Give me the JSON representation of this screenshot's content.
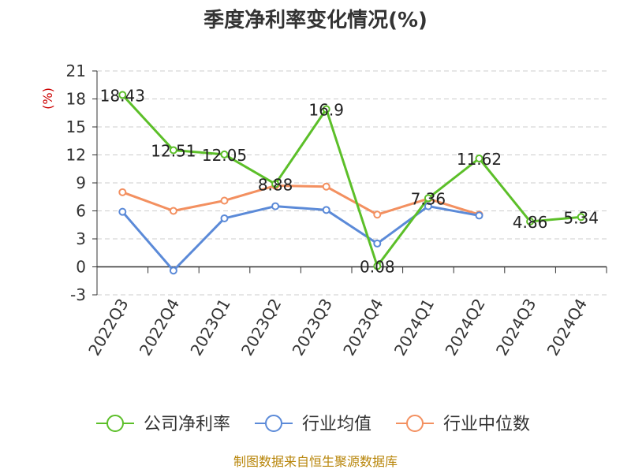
{
  "chart_data": {
    "type": "line",
    "title": "季度净利率变化情况(%)",
    "ylabel": "(%)",
    "xlabel": "",
    "categories": [
      "2022Q3",
      "2022Q4",
      "2023Q1",
      "2023Q2",
      "2023Q3",
      "2023Q4",
      "2024Q1",
      "2024Q2",
      "2024Q3",
      "2024Q4"
    ],
    "ylim": [
      -3,
      21
    ],
    "yticks": [
      "21",
      "18",
      "15",
      "12",
      "9",
      "6",
      "3",
      "0",
      "-3"
    ],
    "ytick_values": [
      21,
      18,
      15,
      12,
      9,
      6,
      3,
      0,
      -3
    ],
    "grid": "horizontal dashed",
    "legend_position": "bottom",
    "series": [
      {
        "name": "公司净利率",
        "color": "#5cbf29",
        "values": [
          18.43,
          12.51,
          12.05,
          8.88,
          16.9,
          0.08,
          7.36,
          11.62,
          4.86,
          5.34
        ],
        "labels": [
          "18.43",
          "12.51",
          "12.05",
          "8.88",
          "16.9",
          "0.08",
          "7.36",
          "11.62",
          "4.86",
          "5.34"
        ]
      },
      {
        "name": "行业均值",
        "color": "#5b8ad8",
        "values": [
          5.9,
          -0.4,
          5.2,
          6.5,
          6.1,
          2.5,
          6.5,
          5.5,
          null,
          null
        ]
      },
      {
        "name": "行业中位数",
        "color": "#f39060",
        "values": [
          8.0,
          6.0,
          7.1,
          8.7,
          8.6,
          5.6,
          7.3,
          5.6,
          null,
          null
        ]
      }
    ]
  },
  "source_text": "制图数据来自恒生聚源数据库"
}
